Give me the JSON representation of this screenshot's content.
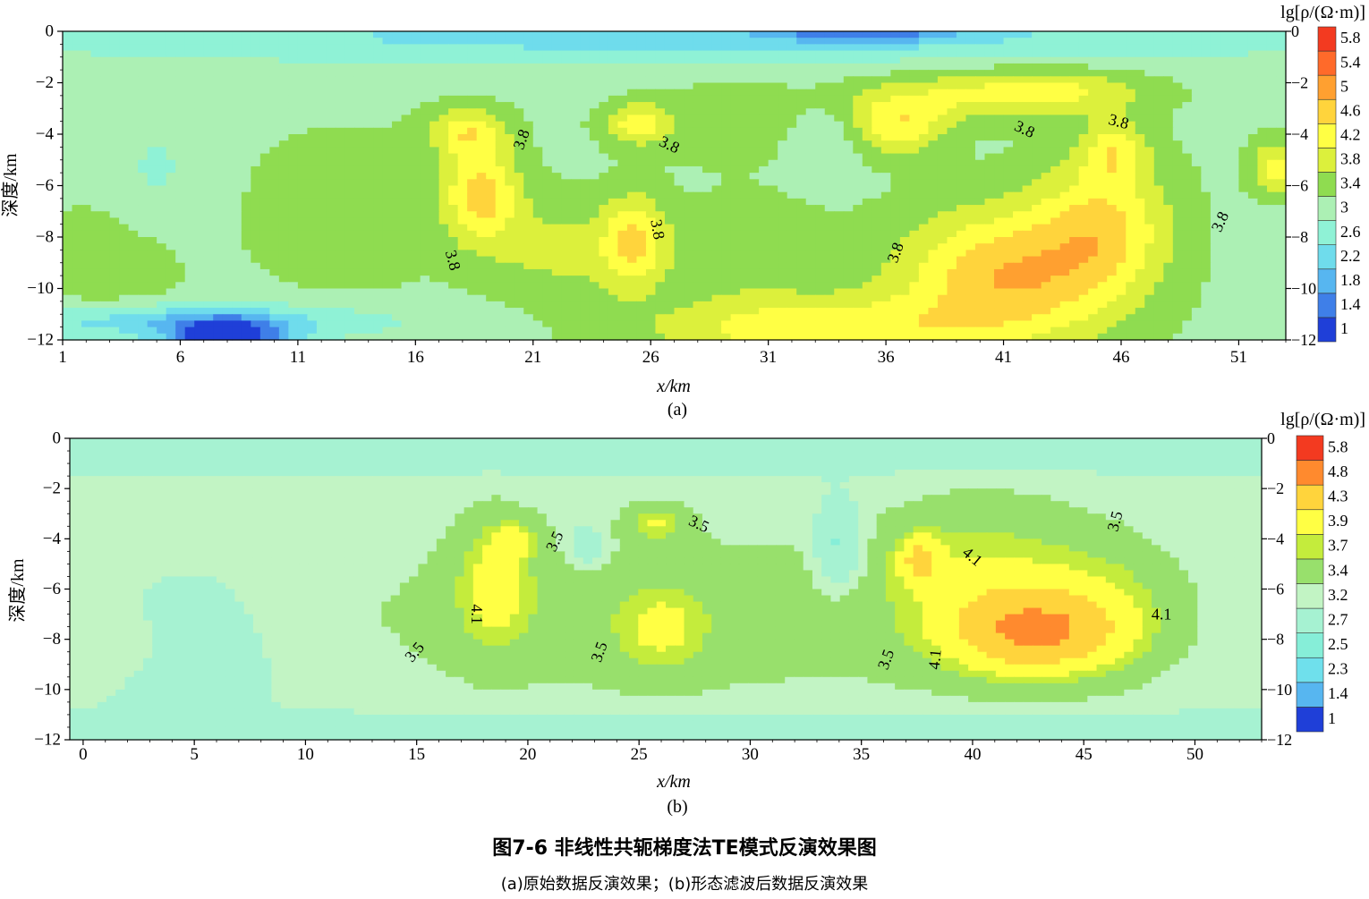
{
  "figure": {
    "caption": "图7-6 非线性共轭梯度法TE模式反演效果图",
    "subcaption": "(a)原始数据反演效果；(b)形态滤波后数据反演效果"
  },
  "chart_data": [
    {
      "type": "heatmap",
      "panel_label": "(a)",
      "xlabel": "x/km",
      "ylabel": "深度/km",
      "colorbar_title": "lg[ρ/(Ω·m)]",
      "xlim": [
        1,
        53
      ],
      "ylim": [
        -12,
        0
      ],
      "x_ticks": [
        1,
        6,
        11,
        16,
        21,
        26,
        31,
        36,
        41,
        46,
        51
      ],
      "y_ticks": [
        0,
        -2,
        -4,
        -6,
        -8,
        -10,
        -12
      ],
      "colorbar_levels": [
        1,
        1.4,
        1.8,
        2.2,
        2.6,
        3,
        3.4,
        3.8,
        4.2,
        4.6,
        5,
        5.4,
        5.8
      ],
      "colorbar_colors": [
        "#1f3fd8",
        "#3f7fe8",
        "#57b6f0",
        "#6fdcec",
        "#8ff2d6",
        "#acf0b4",
        "#8fdc50",
        "#dcf03c",
        "#ffff44",
        "#ffd43c",
        "#ffa030",
        "#ff6a2a",
        "#f33a20"
      ],
      "contour_labels": [
        {
          "text": "3.8",
          "x": 20.5,
          "y": -4.2,
          "rotate": -70
        },
        {
          "text": "3.8",
          "x": 26.8,
          "y": -4.4,
          "rotate": 25
        },
        {
          "text": "3.8",
          "x": 26.3,
          "y": -7.7,
          "rotate": 80
        },
        {
          "text": "3.8",
          "x": 17.6,
          "y": -8.9,
          "rotate": 75
        },
        {
          "text": "3.8",
          "x": 41.9,
          "y": -3.8,
          "rotate": 25
        },
        {
          "text": "3.8",
          "x": 45.9,
          "y": -3.5,
          "rotate": 15
        },
        {
          "text": "3.8",
          "x": 36.4,
          "y": -8.6,
          "rotate": -70
        },
        {
          "text": "3.8",
          "x": 50.2,
          "y": -7.4,
          "rotate": -65
        }
      ],
      "field": {
        "base": 3.3,
        "blobs": [
          {
            "x": 3,
            "y": -9,
            "sx": 3,
            "sy": 2,
            "a": 0.45
          },
          {
            "x": 13,
            "y": -7,
            "sx": 4,
            "sy": 3,
            "a": 0.35
          },
          {
            "x": 18.8,
            "y": -6.3,
            "sx": 1.6,
            "sy": 1.9,
            "a": 1.45
          },
          {
            "x": 18.2,
            "y": -3.9,
            "sx": 1.6,
            "sy": 0.9,
            "a": 1.05
          },
          {
            "x": 25.3,
            "y": -8.2,
            "sx": 1.4,
            "sy": 1.8,
            "a": 1.3
          },
          {
            "x": 25.4,
            "y": -3.6,
            "sx": 1.4,
            "sy": 0.8,
            "a": 1.1
          },
          {
            "x": 22,
            "y": -8.5,
            "sx": 3,
            "sy": 2,
            "a": 0.6
          },
          {
            "x": 30,
            "y": -8.5,
            "sx": 3,
            "sy": 2,
            "a": 0.45
          },
          {
            "x": 36.5,
            "y": -3.7,
            "sx": 2,
            "sy": 1.1,
            "a": 1.1
          },
          {
            "x": 41,
            "y": -9.5,
            "sx": 4.5,
            "sy": 2.6,
            "a": 1.65
          },
          {
            "x": 45.3,
            "y": -7.5,
            "sx": 2.8,
            "sy": 2.8,
            "a": 1.2
          },
          {
            "x": 45.7,
            "y": -4.6,
            "sx": 1.3,
            "sy": 1.2,
            "a": 0.9
          },
          {
            "x": 33,
            "y": -11.6,
            "sx": 7,
            "sy": 1.3,
            "a": 1.2
          },
          {
            "x": 43,
            "y": -2.3,
            "sx": 4,
            "sy": 0.9,
            "a": 0.95
          },
          {
            "x": 38,
            "y": -2.6,
            "sx": 4,
            "sy": 1,
            "a": 0.6
          },
          {
            "x": 52.6,
            "y": -5.3,
            "sx": 1.1,
            "sy": 1,
            "a": 1.1
          },
          {
            "x": 29.5,
            "y": -3.5,
            "sx": 3,
            "sy": 1.4,
            "a": 0.5
          },
          {
            "x": 5,
            "y": -5.5,
            "sx": 2,
            "sy": 3,
            "a": -0.35
          },
          {
            "x": 33.3,
            "y": -4.2,
            "sx": 1.6,
            "sy": 1.2,
            "a": -0.4
          },
          {
            "x": 8,
            "y": -12,
            "sx": 2.5,
            "sy": 0.8,
            "a": -2.2
          },
          {
            "x": 27,
            "y": -0.2,
            "sx": 30,
            "sy": 1.1,
            "a": -0.85
          },
          {
            "x": 35,
            "y": 0,
            "sx": 4,
            "sy": 0.4,
            "a": -1.2
          },
          {
            "x": 6,
            "y": -11.3,
            "sx": 9,
            "sy": 0.7,
            "a": -1
          }
        ]
      }
    },
    {
      "type": "heatmap",
      "panel_label": "(b)",
      "xlabel": "x/km",
      "ylabel": "深度/km",
      "colorbar_title": "lg[ρ/(Ω·m)]",
      "xlim": [
        -0.6,
        53
      ],
      "ylim": [
        -12,
        0
      ],
      "x_ticks": [
        0,
        5,
        10,
        15,
        20,
        25,
        30,
        35,
        40,
        45,
        50
      ],
      "y_ticks": [
        0,
        -2,
        -4,
        -6,
        -8,
        -10,
        -12
      ],
      "colorbar_levels": [
        1,
        1.4,
        2.3,
        2.5,
        2.7,
        3.2,
        3.4,
        3.7,
        3.9,
        4.3,
        4.8,
        5.8
      ],
      "colorbar_colors": [
        "#1f3fd8",
        "#57b6f0",
        "#6fe0ec",
        "#86eed8",
        "#a6f2d2",
        "#c2f4c4",
        "#98e06c",
        "#c4ec3c",
        "#ffff44",
        "#ffd43c",
        "#ff8a2e",
        "#f33a20"
      ],
      "contour_labels": [
        {
          "text": "3.5",
          "x": 21.2,
          "y": -4.1,
          "rotate": -65
        },
        {
          "text": "3.5",
          "x": 27.7,
          "y": -3.4,
          "rotate": 25
        },
        {
          "text": "4.1",
          "x": 17.7,
          "y": -7,
          "rotate": 90
        },
        {
          "text": "3.5",
          "x": 14.9,
          "y": -8.5,
          "rotate": -50
        },
        {
          "text": "3.5",
          "x": 23.2,
          "y": -8.5,
          "rotate": -70
        },
        {
          "text": "3.5",
          "x": 36.1,
          "y": -8.8,
          "rotate": -70
        },
        {
          "text": "4.1",
          "x": 38.3,
          "y": -8.8,
          "rotate": -85
        },
        {
          "text": "4.1",
          "x": 40,
          "y": -4.7,
          "rotate": 40
        },
        {
          "text": "4.1",
          "x": 48.5,
          "y": -7,
          "rotate": 0
        },
        {
          "text": "3.5",
          "x": 46.4,
          "y": -3.3,
          "rotate": -75
        }
      ],
      "field": {
        "base": 3.25,
        "blobs": [
          {
            "x": 26,
            "y": -7,
            "sx": 15,
            "sy": 3.5,
            "a": 0.3
          },
          {
            "x": 18.5,
            "y": -5.8,
            "sx": 1.7,
            "sy": 2.6,
            "a": 0.65
          },
          {
            "x": 19.5,
            "y": -4,
            "sx": 1,
            "sy": 0.7,
            "a": 0.5
          },
          {
            "x": 25.8,
            "y": -3.4,
            "sx": 1.3,
            "sy": 0.7,
            "a": 0.6
          },
          {
            "x": 26,
            "y": -7.6,
            "sx": 2,
            "sy": 1.7,
            "a": 0.5
          },
          {
            "x": 42.8,
            "y": -7.8,
            "sx": 4,
            "sy": 1.7,
            "a": 1.3
          },
          {
            "x": 40.5,
            "y": -5.5,
            "sx": 4.5,
            "sy": 3,
            "a": 0.55
          },
          {
            "x": 37.6,
            "y": -4.8,
            "sx": 1,
            "sy": 1,
            "a": 0.8
          },
          {
            "x": 46,
            "y": -6.5,
            "sx": 3.5,
            "sy": 2.5,
            "a": 0.4
          },
          {
            "x": 34,
            "y": -4.3,
            "sx": 1,
            "sy": 1.6,
            "a": -0.75
          },
          {
            "x": 5,
            "y": -9,
            "sx": 3,
            "sy": 3,
            "a": -0.35
          },
          {
            "x": 2,
            "y": -8.3,
            "sx": 1.8,
            "sy": 1.2,
            "a": 0.2
          },
          {
            "x": 22.7,
            "y": -4.3,
            "sx": 0.8,
            "sy": 0.8,
            "a": -0.45
          },
          {
            "x": 27,
            "y": -0.1,
            "sx": 35,
            "sy": 1,
            "a": -0.55
          },
          {
            "x": 27,
            "y": -12,
            "sx": 35,
            "sy": 0.9,
            "a": -0.5
          }
        ]
      }
    }
  ]
}
